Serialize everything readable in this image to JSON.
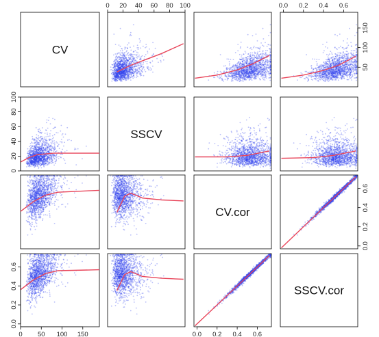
{
  "chart_data": {
    "type": "scatter",
    "title": "",
    "variables": [
      "CV",
      "SSCV",
      "CV.cor",
      "SSCV.cor"
    ],
    "ranges": {
      "CV": [
        0,
        190
      ],
      "SSCV": [
        0,
        100
      ],
      "CV.cor": [
        -0.03,
        0.74
      ],
      "SSCV.cor": [
        -0.03,
        0.74
      ]
    },
    "axes": {
      "bottom": [
        {
          "column": "CV",
          "ticks": [
            0,
            50,
            100,
            150
          ],
          "tick_labels": [
            "0",
            "50",
            "100",
            "150"
          ]
        },
        {
          "column": "CV.cor",
          "ticks": [
            0.0,
            0.2,
            0.4,
            0.6
          ],
          "tick_labels": [
            "0.0",
            "0.2",
            "0.4",
            "0.6"
          ]
        }
      ],
      "top": [
        {
          "column": "SSCV",
          "ticks": [
            0,
            20,
            40,
            60,
            80,
            100
          ],
          "tick_labels": [
            "0",
            "20",
            "40",
            "60",
            "80",
            "100"
          ]
        },
        {
          "column": "SSCV.cor",
          "ticks": [
            0.0,
            0.2,
            0.4,
            0.6
          ],
          "tick_labels": [
            "0.0",
            "0.2",
            "0.4",
            "0.6"
          ]
        }
      ],
      "left": [
        {
          "row": "SSCV",
          "ticks": [
            0,
            20,
            40,
            60,
            80,
            100
          ],
          "tick_labels": [
            "0",
            "20",
            "40",
            "60",
            "80",
            "100"
          ]
        },
        {
          "row": "SSCV.cor",
          "ticks": [
            0.0,
            0.2,
            0.4,
            0.6
          ],
          "tick_labels": [
            "0.0",
            "0.2",
            "0.4",
            "0.6"
          ]
        }
      ],
      "right": [
        {
          "row": "CV",
          "ticks": [
            50,
            100,
            150
          ],
          "tick_labels": [
            "50",
            "100",
            "150"
          ]
        },
        {
          "row": "CV.cor",
          "ticks": [
            0.0,
            0.2,
            0.4,
            0.6
          ],
          "tick_labels": [
            "0.0",
            "0.2",
            "0.4",
            "0.6"
          ]
        }
      ]
    },
    "panels": [
      {
        "y": "CV",
        "x": "SSCV",
        "smooth": [
          [
            12,
            38
          ],
          [
            30,
            55
          ],
          [
            50,
            70
          ],
          [
            70,
            85
          ],
          [
            98,
            110
          ]
        ]
      },
      {
        "y": "CV",
        "x": "CV.cor",
        "smooth": [
          [
            -0.02,
            22
          ],
          [
            0.2,
            30
          ],
          [
            0.4,
            43
          ],
          [
            0.55,
            58
          ],
          [
            0.72,
            80
          ]
        ]
      },
      {
        "y": "CV",
        "x": "SSCV.cor",
        "smooth": [
          [
            -0.02,
            22
          ],
          [
            0.2,
            30
          ],
          [
            0.4,
            42
          ],
          [
            0.55,
            55
          ],
          [
            0.72,
            78
          ]
        ]
      },
      {
        "y": "SSCV",
        "x": "CV",
        "smooth": [
          [
            0,
            12
          ],
          [
            20,
            18
          ],
          [
            40,
            22
          ],
          [
            80,
            24
          ],
          [
            190,
            24
          ]
        ]
      },
      {
        "y": "SSCV",
        "x": "CV.cor",
        "smooth": [
          [
            -0.02,
            19
          ],
          [
            0.3,
            19
          ],
          [
            0.5,
            21
          ],
          [
            0.72,
            27
          ]
        ]
      },
      {
        "y": "SSCV",
        "x": "SSCV.cor",
        "smooth": [
          [
            -0.02,
            17
          ],
          [
            0.3,
            18
          ],
          [
            0.5,
            21
          ],
          [
            0.72,
            27
          ]
        ]
      },
      {
        "y": "CV.cor",
        "x": "CV",
        "smooth": [
          [
            0,
            0.36
          ],
          [
            30,
            0.46
          ],
          [
            60,
            0.53
          ],
          [
            90,
            0.56
          ],
          [
            190,
            0.58
          ]
        ]
      },
      {
        "y": "CV.cor",
        "x": "SSCV",
        "smooth": [
          [
            12,
            0.35
          ],
          [
            22,
            0.52
          ],
          [
            30,
            0.55
          ],
          [
            45,
            0.5
          ],
          [
            70,
            0.48
          ],
          [
            98,
            0.47
          ]
        ]
      },
      {
        "y": "CV.cor",
        "x": "SSCV.cor",
        "smooth": [
          [
            -0.02,
            -0.02
          ],
          [
            0.72,
            0.72
          ]
        ]
      },
      {
        "y": "SSCV.cor",
        "x": "CV",
        "smooth": [
          [
            0,
            0.36
          ],
          [
            30,
            0.46
          ],
          [
            60,
            0.53
          ],
          [
            90,
            0.56
          ],
          [
            190,
            0.57
          ]
        ]
      },
      {
        "y": "SSCV.cor",
        "x": "SSCV",
        "smooth": [
          [
            12,
            0.35
          ],
          [
            22,
            0.52
          ],
          [
            30,
            0.55
          ],
          [
            45,
            0.5
          ],
          [
            70,
            0.48
          ],
          [
            98,
            0.47
          ]
        ]
      },
      {
        "y": "SSCV.cor",
        "x": "CV.cor",
        "smooth": [
          [
            -0.02,
            -0.02
          ],
          [
            0.72,
            0.72
          ]
        ]
      }
    ],
    "colors": {
      "points": "#3344ee",
      "smooth": "#e8455a",
      "frame": "#000000"
    },
    "grid": false,
    "legend": "none"
  }
}
